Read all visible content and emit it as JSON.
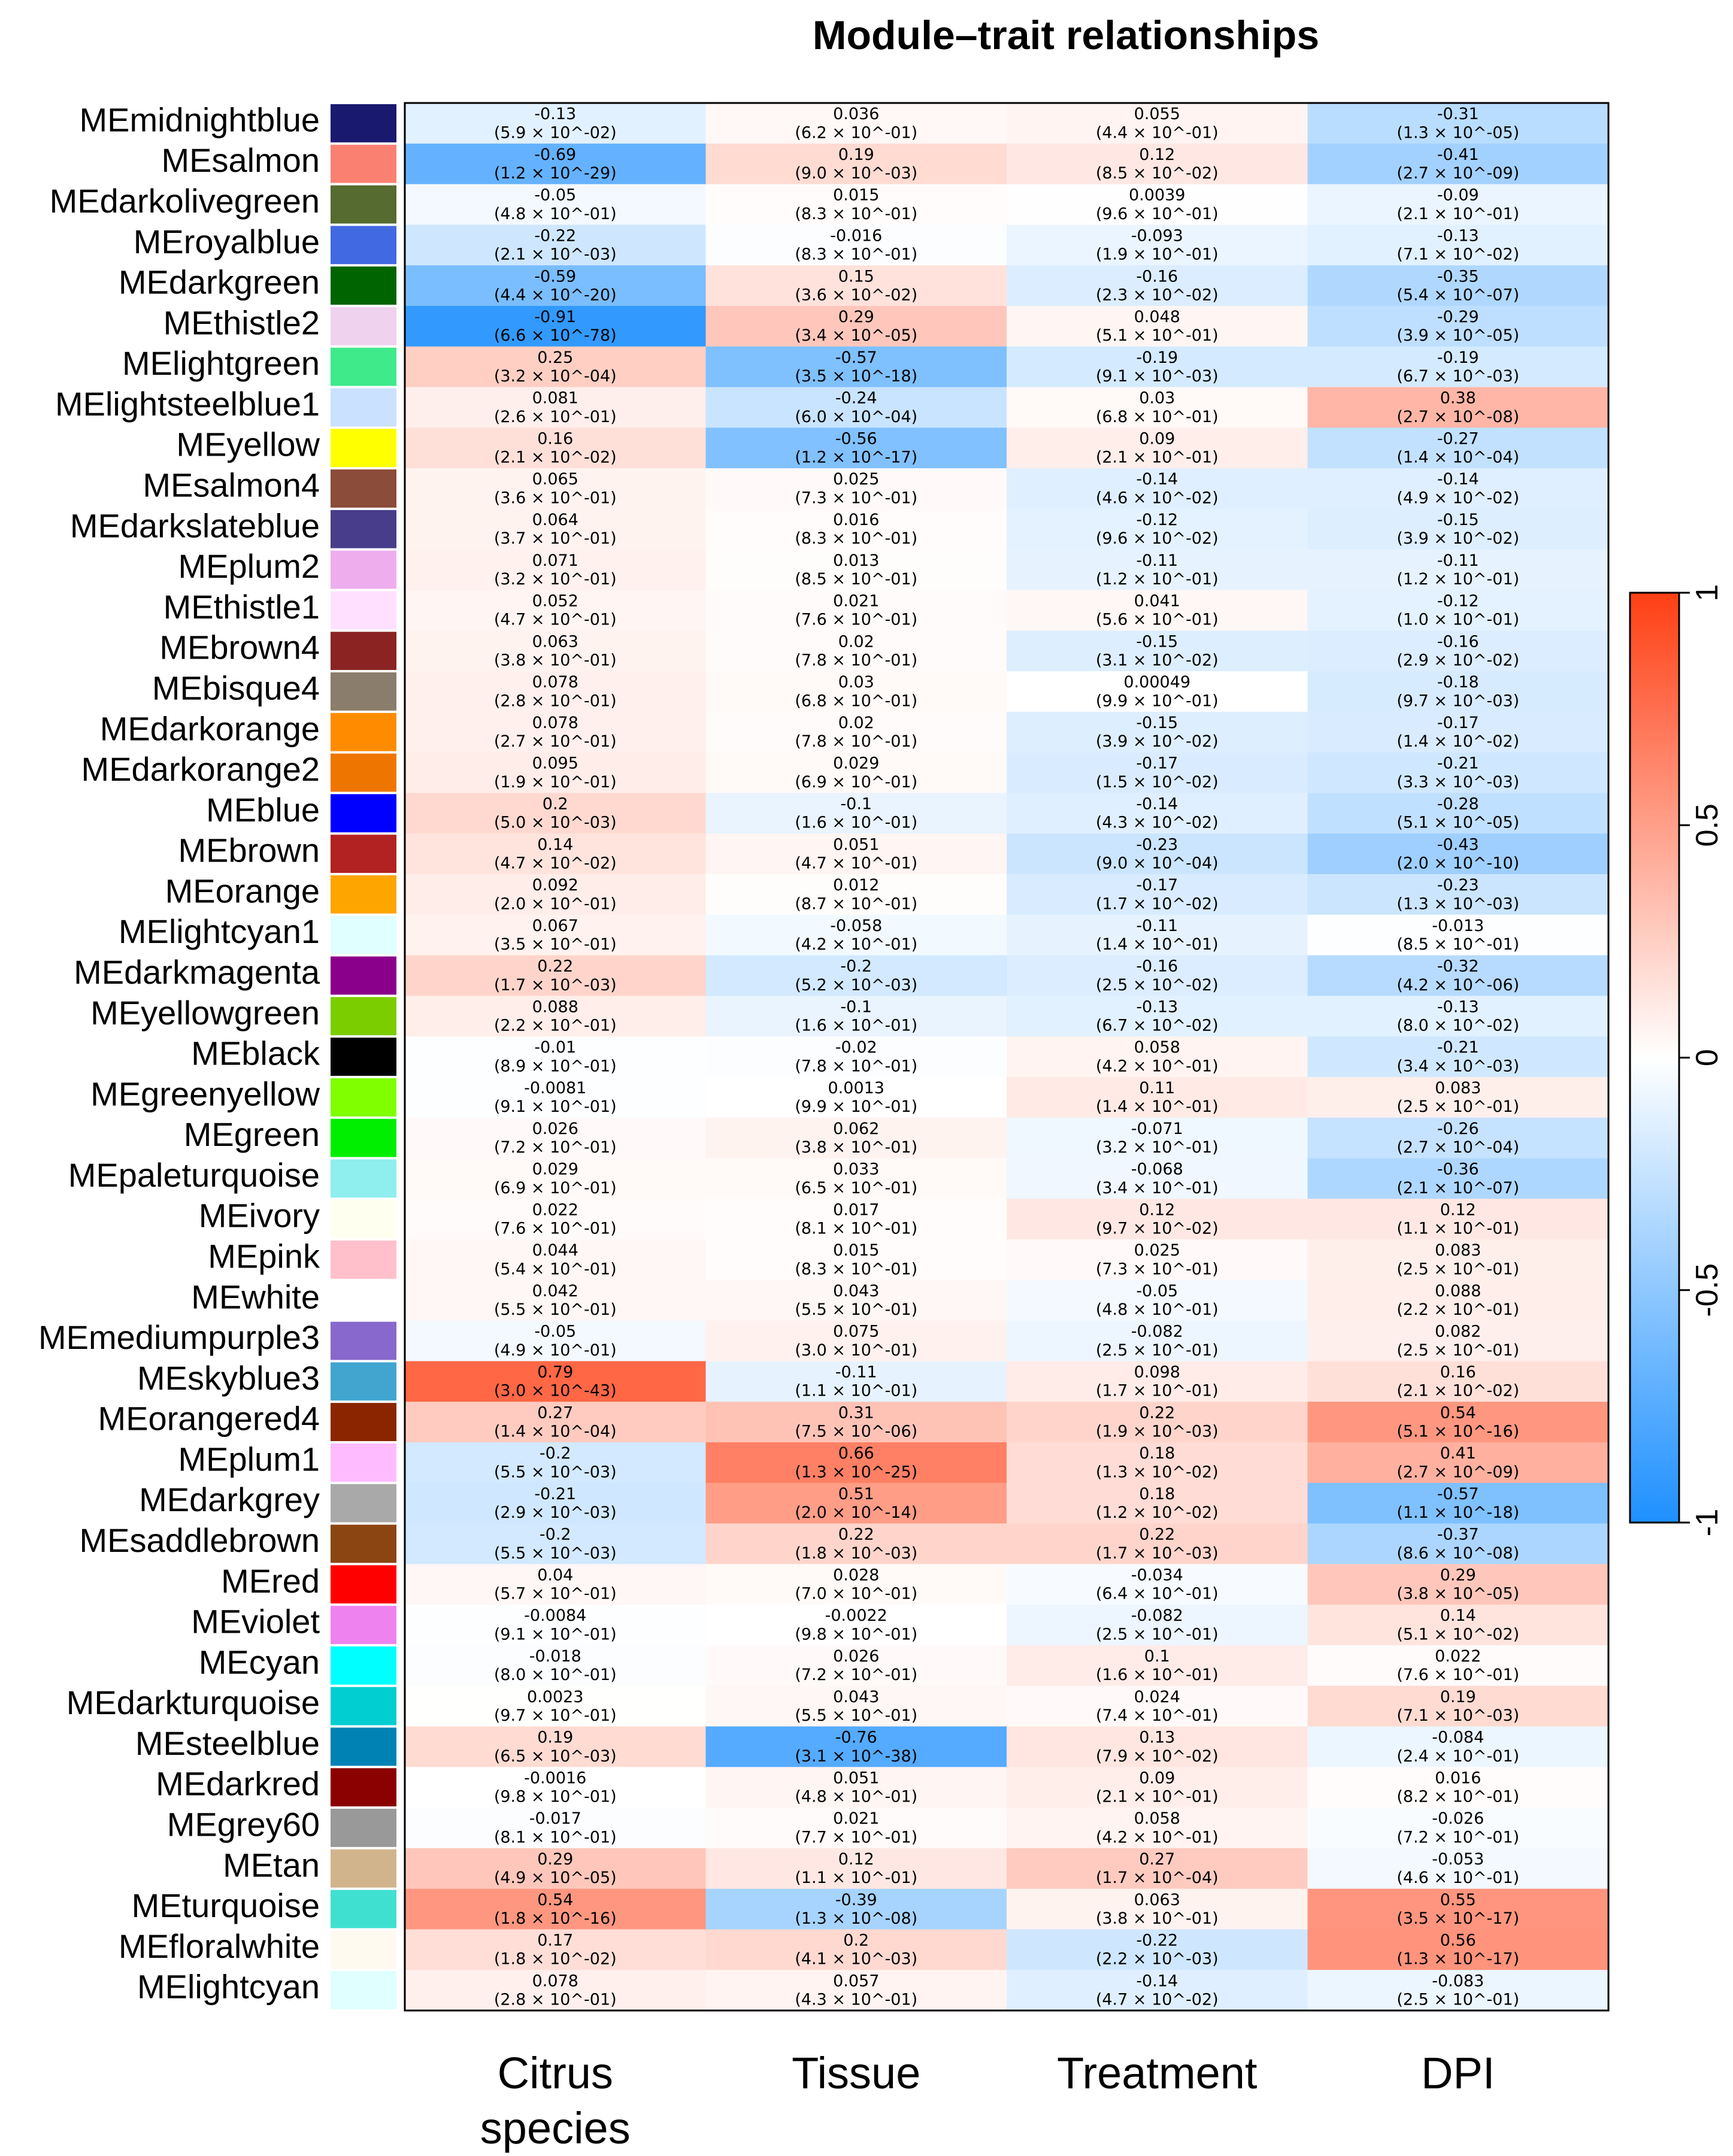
{
  "chart_data": {
    "type": "heatmap",
    "title": "Module–trait relationships",
    "columns": [
      {
        "line1": "Citrus",
        "line2": "species"
      },
      {
        "line1": "Tissue",
        "line2": ""
      },
      {
        "line1": "Treatment",
        "line2": ""
      },
      {
        "line1": "DPI",
        "line2": ""
      }
    ],
    "rows": [
      {
        "name": "MEmidnightblue",
        "color": "#191970",
        "cells": [
          [
            "-0.13",
            "(5.9 × 10^-02)"
          ],
          [
            "0.036",
            "(6.2 × 10^-01)"
          ],
          [
            "0.055",
            "(4.4 × 10^-01)"
          ],
          [
            "-0.31",
            "(1.3 × 10^-05)"
          ]
        ]
      },
      {
        "name": "MEsalmon",
        "color": "#FA8072",
        "cells": [
          [
            "-0.69",
            "(1.2 × 10^-29)"
          ],
          [
            "0.19",
            "(9.0 × 10^-03)"
          ],
          [
            "0.12",
            "(8.5 × 10^-02)"
          ],
          [
            "-0.41",
            "(2.7 × 10^-09)"
          ]
        ]
      },
      {
        "name": "MEdarkolivegreen",
        "color": "#556B2F",
        "cells": [
          [
            "-0.05",
            "(4.8 × 10^-01)"
          ],
          [
            "0.015",
            "(8.3 × 10^-01)"
          ],
          [
            "0.0039",
            "(9.6 × 10^-01)"
          ],
          [
            "-0.09",
            "(2.1 × 10^-01)"
          ]
        ]
      },
      {
        "name": "MEroyalblue",
        "color": "#4169E1",
        "cells": [
          [
            "-0.22",
            "(2.1 × 10^-03)"
          ],
          [
            "-0.016",
            "(8.3 × 10^-01)"
          ],
          [
            "-0.093",
            "(1.9 × 10^-01)"
          ],
          [
            "-0.13",
            "(7.1 × 10^-02)"
          ]
        ]
      },
      {
        "name": "MEdarkgreen",
        "color": "#006400",
        "cells": [
          [
            "-0.59",
            "(4.4 × 10^-20)"
          ],
          [
            "0.15",
            "(3.6 × 10^-02)"
          ],
          [
            "-0.16",
            "(2.3 × 10^-02)"
          ],
          [
            "-0.35",
            "(5.4 × 10^-07)"
          ]
        ]
      },
      {
        "name": "MEthistle2",
        "color": "#EED2EE",
        "cells": [
          [
            "-0.91",
            "(6.6 × 10^-78)"
          ],
          [
            "0.29",
            "(3.4 × 10^-05)"
          ],
          [
            "0.048",
            "(5.1 × 10^-01)"
          ],
          [
            "-0.29",
            "(3.9 × 10^-05)"
          ]
        ]
      },
      {
        "name": "MElightgreen",
        "color": "#3EEA8A",
        "cells": [
          [
            "0.25",
            "(3.2 × 10^-04)"
          ],
          [
            "-0.57",
            "(3.5 × 10^-18)"
          ],
          [
            "-0.19",
            "(9.1 × 10^-03)"
          ],
          [
            "-0.19",
            "(6.7 × 10^-03)"
          ]
        ]
      },
      {
        "name": "MElightsteelblue1",
        "color": "#CAE1FF",
        "cells": [
          [
            "0.081",
            "(2.6 × 10^-01)"
          ],
          [
            "-0.24",
            "(6.0 × 10^-04)"
          ],
          [
            "0.03",
            "(6.8 × 10^-01)"
          ],
          [
            "0.38",
            "(2.7 × 10^-08)"
          ]
        ]
      },
      {
        "name": "MEyellow",
        "color": "#FFFF00",
        "cells": [
          [
            "0.16",
            "(2.1 × 10^-02)"
          ],
          [
            "-0.56",
            "(1.2 × 10^-17)"
          ],
          [
            "0.09",
            "(2.1 × 10^-01)"
          ],
          [
            "-0.27",
            "(1.4 × 10^-04)"
          ]
        ]
      },
      {
        "name": "MEsalmon4",
        "color": "#8B4C39",
        "cells": [
          [
            "0.065",
            "(3.6 × 10^-01)"
          ],
          [
            "0.025",
            "(7.3 × 10^-01)"
          ],
          [
            "-0.14",
            "(4.6 × 10^-02)"
          ],
          [
            "-0.14",
            "(4.9 × 10^-02)"
          ]
        ]
      },
      {
        "name": "MEdarkslateblue",
        "color": "#483D8B",
        "cells": [
          [
            "0.064",
            "(3.7 × 10^-01)"
          ],
          [
            "0.016",
            "(8.3 × 10^-01)"
          ],
          [
            "-0.12",
            "(9.6 × 10^-02)"
          ],
          [
            "-0.15",
            "(3.9 × 10^-02)"
          ]
        ]
      },
      {
        "name": "MEplum2",
        "color": "#EEAEEE",
        "cells": [
          [
            "0.071",
            "(3.2 × 10^-01)"
          ],
          [
            "0.013",
            "(8.5 × 10^-01)"
          ],
          [
            "-0.11",
            "(1.2 × 10^-01)"
          ],
          [
            "-0.11",
            "(1.2 × 10^-01)"
          ]
        ]
      },
      {
        "name": "MEthistle1",
        "color": "#FFE1FF",
        "cells": [
          [
            "0.052",
            "(4.7 × 10^-01)"
          ],
          [
            "0.021",
            "(7.6 × 10^-01)"
          ],
          [
            "0.041",
            "(5.6 × 10^-01)"
          ],
          [
            "-0.12",
            "(1.0 × 10^-01)"
          ]
        ]
      },
      {
        "name": "MEbrown4",
        "color": "#8B2323",
        "cells": [
          [
            "0.063",
            "(3.8 × 10^-01)"
          ],
          [
            "0.02",
            "(7.8 × 10^-01)"
          ],
          [
            "-0.15",
            "(3.1 × 10^-02)"
          ],
          [
            "-0.16",
            "(2.9 × 10^-02)"
          ]
        ]
      },
      {
        "name": "MEbisque4",
        "color": "#8B7D6B",
        "cells": [
          [
            "0.078",
            "(2.8 × 10^-01)"
          ],
          [
            "0.03",
            "(6.8 × 10^-01)"
          ],
          [
            "0.00049",
            "(9.9 × 10^-01)"
          ],
          [
            "-0.18",
            "(9.7 × 10^-03)"
          ]
        ]
      },
      {
        "name": "MEdarkorange",
        "color": "#FF8C00",
        "cells": [
          [
            "0.078",
            "(2.7 × 10^-01)"
          ],
          [
            "0.02",
            "(7.8 × 10^-01)"
          ],
          [
            "-0.15",
            "(3.9 × 10^-02)"
          ],
          [
            "-0.17",
            "(1.4 × 10^-02)"
          ]
        ]
      },
      {
        "name": "MEdarkorange2",
        "color": "#EE7600",
        "cells": [
          [
            "0.095",
            "(1.9 × 10^-01)"
          ],
          [
            "0.029",
            "(6.9 × 10^-01)"
          ],
          [
            "-0.17",
            "(1.5 × 10^-02)"
          ],
          [
            "-0.21",
            "(3.3 × 10^-03)"
          ]
        ]
      },
      {
        "name": "MEblue",
        "color": "#0000FF",
        "cells": [
          [
            "0.2",
            "(5.0 × 10^-03)"
          ],
          [
            "-0.1",
            "(1.6 × 10^-01)"
          ],
          [
            "-0.14",
            "(4.3 × 10^-02)"
          ],
          [
            "-0.28",
            "(5.1 × 10^-05)"
          ]
        ]
      },
      {
        "name": "MEbrown",
        "color": "#B22222",
        "cells": [
          [
            "0.14",
            "(4.7 × 10^-02)"
          ],
          [
            "0.051",
            "(4.7 × 10^-01)"
          ],
          [
            "-0.23",
            "(9.0 × 10^-04)"
          ],
          [
            "-0.43",
            "(2.0 × 10^-10)"
          ]
        ]
      },
      {
        "name": "MEorange",
        "color": "#FFA500",
        "cells": [
          [
            "0.092",
            "(2.0 × 10^-01)"
          ],
          [
            "0.012",
            "(8.7 × 10^-01)"
          ],
          [
            "-0.17",
            "(1.7 × 10^-02)"
          ],
          [
            "-0.23",
            "(1.3 × 10^-03)"
          ]
        ]
      },
      {
        "name": "MElightcyan1",
        "color": "#E0FFFF",
        "cells": [
          [
            "0.067",
            "(3.5 × 10^-01)"
          ],
          [
            "-0.058",
            "(4.2 × 10^-01)"
          ],
          [
            "-0.11",
            "(1.4 × 10^-01)"
          ],
          [
            "-0.013",
            "(8.5 × 10^-01)"
          ]
        ]
      },
      {
        "name": "MEdarkmagenta",
        "color": "#8B008B",
        "cells": [
          [
            "0.22",
            "(1.7 × 10^-03)"
          ],
          [
            "-0.2",
            "(5.2 × 10^-03)"
          ],
          [
            "-0.16",
            "(2.5 × 10^-02)"
          ],
          [
            "-0.32",
            "(4.2 × 10^-06)"
          ]
        ]
      },
      {
        "name": "MEyellowgreen",
        "color": "#7CCD00",
        "cells": [
          [
            "0.088",
            "(2.2 × 10^-01)"
          ],
          [
            "-0.1",
            "(1.6 × 10^-01)"
          ],
          [
            "-0.13",
            "(6.7 × 10^-02)"
          ],
          [
            "-0.13",
            "(8.0 × 10^-02)"
          ]
        ]
      },
      {
        "name": "MEblack",
        "color": "#000000",
        "cells": [
          [
            "-0.01",
            "(8.9 × 10^-01)"
          ],
          [
            "-0.02",
            "(7.8 × 10^-01)"
          ],
          [
            "0.058",
            "(4.2 × 10^-01)"
          ],
          [
            "-0.21",
            "(3.4 × 10^-03)"
          ]
        ]
      },
      {
        "name": "MEgreenyellow",
        "color": "#7FFF00",
        "cells": [
          [
            "-0.0081",
            "(9.1 × 10^-01)"
          ],
          [
            "0.0013",
            "(9.9 × 10^-01)"
          ],
          [
            "0.11",
            "(1.4 × 10^-01)"
          ],
          [
            "0.083",
            "(2.5 × 10^-01)"
          ]
        ]
      },
      {
        "name": "MEgreen",
        "color": "#00EE00",
        "cells": [
          [
            "0.026",
            "(7.2 × 10^-01)"
          ],
          [
            "0.062",
            "(3.8 × 10^-01)"
          ],
          [
            "-0.071",
            "(3.2 × 10^-01)"
          ],
          [
            "-0.26",
            "(2.7 × 10^-04)"
          ]
        ]
      },
      {
        "name": "MEpaleturquoise",
        "color": "#8FEEEE",
        "cells": [
          [
            "0.029",
            "(6.9 × 10^-01)"
          ],
          [
            "0.033",
            "(6.5 × 10^-01)"
          ],
          [
            "-0.068",
            "(3.4 × 10^-01)"
          ],
          [
            "-0.36",
            "(2.1 × 10^-07)"
          ]
        ]
      },
      {
        "name": "MEivory",
        "color": "#FFFFF0",
        "cells": [
          [
            "0.022",
            "(7.6 × 10^-01)"
          ],
          [
            "0.017",
            "(8.1 × 10^-01)"
          ],
          [
            "0.12",
            "(9.7 × 10^-02)"
          ],
          [
            "0.12",
            "(1.1 × 10^-01)"
          ]
        ]
      },
      {
        "name": "MEpink",
        "color": "#FFC0CB",
        "cells": [
          [
            "0.044",
            "(5.4 × 10^-01)"
          ],
          [
            "0.015",
            "(8.3 × 10^-01)"
          ],
          [
            "0.025",
            "(7.3 × 10^-01)"
          ],
          [
            "0.083",
            "(2.5 × 10^-01)"
          ]
        ]
      },
      {
        "name": "MEwhite",
        "color": "#FFFFFF",
        "cells": [
          [
            "0.042",
            "(5.5 × 10^-01)"
          ],
          [
            "0.043",
            "(5.5 × 10^-01)"
          ],
          [
            "-0.05",
            "(4.8 × 10^-01)"
          ],
          [
            "0.088",
            "(2.2 × 10^-01)"
          ]
        ]
      },
      {
        "name": "MEmediumpurple3",
        "color": "#8968CD",
        "cells": [
          [
            "-0.05",
            "(4.9 × 10^-01)"
          ],
          [
            "0.075",
            "(3.0 × 10^-01)"
          ],
          [
            "-0.082",
            "(2.5 × 10^-01)"
          ],
          [
            "0.082",
            "(2.5 × 10^-01)"
          ]
        ]
      },
      {
        "name": "MEskyblue3",
        "color": "#42A5D0",
        "cells": [
          [
            "0.79",
            "(3.0 × 10^-43)"
          ],
          [
            "-0.11",
            "(1.1 × 10^-01)"
          ],
          [
            "0.098",
            "(1.7 × 10^-01)"
          ],
          [
            "0.16",
            "(2.1 × 10^-02)"
          ]
        ]
      },
      {
        "name": "MEorangered4",
        "color": "#8B2500",
        "cells": [
          [
            "0.27",
            "(1.4 × 10^-04)"
          ],
          [
            "0.31",
            "(7.5 × 10^-06)"
          ],
          [
            "0.22",
            "(1.9 × 10^-03)"
          ],
          [
            "0.54",
            "(5.1 × 10^-16)"
          ]
        ]
      },
      {
        "name": "MEplum1",
        "color": "#FFBBFF",
        "cells": [
          [
            "-0.2",
            "(5.5 × 10^-03)"
          ],
          [
            "0.66",
            "(1.3 × 10^-25)"
          ],
          [
            "0.18",
            "(1.3 × 10^-02)"
          ],
          [
            "0.41",
            "(2.7 × 10^-09)"
          ]
        ]
      },
      {
        "name": "MEdarkgrey",
        "color": "#A9A9A9",
        "cells": [
          [
            "-0.21",
            "(2.9 × 10^-03)"
          ],
          [
            "0.51",
            "(2.0 × 10^-14)"
          ],
          [
            "0.18",
            "(1.2 × 10^-02)"
          ],
          [
            "-0.57",
            "(1.1 × 10^-18)"
          ]
        ]
      },
      {
        "name": "MEsaddlebrown",
        "color": "#8B4513",
        "cells": [
          [
            "-0.2",
            "(5.5 × 10^-03)"
          ],
          [
            "0.22",
            "(1.8 × 10^-03)"
          ],
          [
            "0.22",
            "(1.7 × 10^-03)"
          ],
          [
            "-0.37",
            "(8.6 × 10^-08)"
          ]
        ]
      },
      {
        "name": "MEred",
        "color": "#FF0000",
        "cells": [
          [
            "0.04",
            "(5.7 × 10^-01)"
          ],
          [
            "0.028",
            "(7.0 × 10^-01)"
          ],
          [
            "-0.034",
            "(6.4 × 10^-01)"
          ],
          [
            "0.29",
            "(3.8 × 10^-05)"
          ]
        ]
      },
      {
        "name": "MEviolet",
        "color": "#EE82EE",
        "cells": [
          [
            "-0.0084",
            "(9.1 × 10^-01)"
          ],
          [
            "-0.0022",
            "(9.8 × 10^-01)"
          ],
          [
            "-0.082",
            "(2.5 × 10^-01)"
          ],
          [
            "0.14",
            "(5.1 × 10^-02)"
          ]
        ]
      },
      {
        "name": "MEcyan",
        "color": "#00FFFF",
        "cells": [
          [
            "-0.018",
            "(8.0 × 10^-01)"
          ],
          [
            "0.026",
            "(7.2 × 10^-01)"
          ],
          [
            "0.1",
            "(1.6 × 10^-01)"
          ],
          [
            "0.022",
            "(7.6 × 10^-01)"
          ]
        ]
      },
      {
        "name": "MEdarkturquoise",
        "color": "#00CED1",
        "cells": [
          [
            "0.0023",
            "(9.7 × 10^-01)"
          ],
          [
            "0.043",
            "(5.5 × 10^-01)"
          ],
          [
            "0.024",
            "(7.4 × 10^-01)"
          ],
          [
            "0.19",
            "(7.1 × 10^-03)"
          ]
        ]
      },
      {
        "name": "MEsteelblue",
        "color": "#0082B4",
        "cells": [
          [
            "0.19",
            "(6.5 × 10^-03)"
          ],
          [
            "-0.76",
            "(3.1 × 10^-38)"
          ],
          [
            "0.13",
            "(7.9 × 10^-02)"
          ],
          [
            "-0.084",
            "(2.4 × 10^-01)"
          ]
        ]
      },
      {
        "name": "MEdarkred",
        "color": "#8B0000",
        "cells": [
          [
            "-0.0016",
            "(9.8 × 10^-01)"
          ],
          [
            "0.051",
            "(4.8 × 10^-01)"
          ],
          [
            "0.09",
            "(2.1 × 10^-01)"
          ],
          [
            "0.016",
            "(8.2 × 10^-01)"
          ]
        ]
      },
      {
        "name": "MEgrey60",
        "color": "#999999",
        "cells": [
          [
            "-0.017",
            "(8.1 × 10^-01)"
          ],
          [
            "0.021",
            "(7.7 × 10^-01)"
          ],
          [
            "0.058",
            "(4.2 × 10^-01)"
          ],
          [
            "-0.026",
            "(7.2 × 10^-01)"
          ]
        ]
      },
      {
        "name": "MEtan",
        "color": "#D2B48C",
        "cells": [
          [
            "0.29",
            "(4.9 × 10^-05)"
          ],
          [
            "0.12",
            "(1.1 × 10^-01)"
          ],
          [
            "0.27",
            "(1.7 × 10^-04)"
          ],
          [
            "-0.053",
            "(4.6 × 10^-01)"
          ]
        ]
      },
      {
        "name": "MEturquoise",
        "color": "#40E0D0",
        "cells": [
          [
            "0.54",
            "(1.8 × 10^-16)"
          ],
          [
            "-0.39",
            "(1.3 × 10^-08)"
          ],
          [
            "0.063",
            "(3.8 × 10^-01)"
          ],
          [
            "0.55",
            "(3.5 × 10^-17)"
          ]
        ]
      },
      {
        "name": "MEfloralwhite",
        "color": "#FFFAF0",
        "cells": [
          [
            "0.17",
            "(1.8 × 10^-02)"
          ],
          [
            "0.2",
            "(4.1 × 10^-03)"
          ],
          [
            "-0.22",
            "(2.2 × 10^-03)"
          ],
          [
            "0.56",
            "(1.3 × 10^-17)"
          ]
        ]
      },
      {
        "name": "MElightcyan",
        "color": "#E0FFFF",
        "cells": [
          [
            "0.078",
            "(2.8 × 10^-01)"
          ],
          [
            "0.057",
            "(4.3 × 10^-01)"
          ],
          [
            "-0.14",
            "(4.7 × 10^-02)"
          ],
          [
            "-0.083",
            "(2.5 × 10^-01)"
          ]
        ]
      }
    ],
    "colorscale": {
      "min": -1,
      "max": 1,
      "low": "#1E90FF",
      "mid": "#FFFFFF",
      "high": "#FF3F14"
    },
    "legend_ticks": [
      "1",
      "0.5",
      "0",
      "-0.5",
      "-1"
    ],
    "legend_position": "right"
  }
}
